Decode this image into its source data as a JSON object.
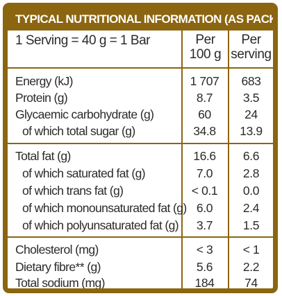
{
  "title": "TYPICAL NUTRITIONAL INFORMATION (AS PACKED)",
  "header": {
    "serving": "1 Serving = 40 g = 1 Bar",
    "col1_line1": "Per",
    "col1_line2": "100 g",
    "col2_line1": "Per",
    "col2_line2": "serving"
  },
  "rows": [
    {
      "label": "Energy (kJ)",
      "per100": "1 707",
      "perServing": "683"
    },
    {
      "label": "Protein (g)",
      "per100": "8.7",
      "perServing": "3.5"
    },
    {
      "label": "Glycaemic carbohydrate (g)",
      "per100": "60",
      "perServing": "24"
    },
    {
      "label": "of which total sugar (g)",
      "per100": "34.8",
      "perServing": "13.9"
    },
    {
      "label": "Total fat (g)",
      "per100": "16.6",
      "perServing": "6.6"
    },
    {
      "label": "of which saturated fat (g)",
      "per100": "7.0",
      "perServing": "2.8"
    },
    {
      "label": "of which trans fat (g)",
      "per100": "< 0.1",
      "perServing": "0.0"
    },
    {
      "label": "of which monounsaturated fat (g)",
      "per100": "6.0",
      "perServing": "2.4"
    },
    {
      "label": "of which polyunsaturated fat (g)",
      "per100": "3.7",
      "perServing": "1.5"
    },
    {
      "label": "Cholesterol (mg)",
      "per100": "< 3",
      "perServing": "< 1"
    },
    {
      "label": "Dietary fibre** (g)",
      "per100": "5.6",
      "perServing": "2.2"
    },
    {
      "label": "Total sodium (mg)",
      "per100": "184",
      "perServing": "74"
    }
  ],
  "colors": {
    "border": "#8b6510",
    "title_text": "#ffffff",
    "body_text": "#2b2a28"
  }
}
